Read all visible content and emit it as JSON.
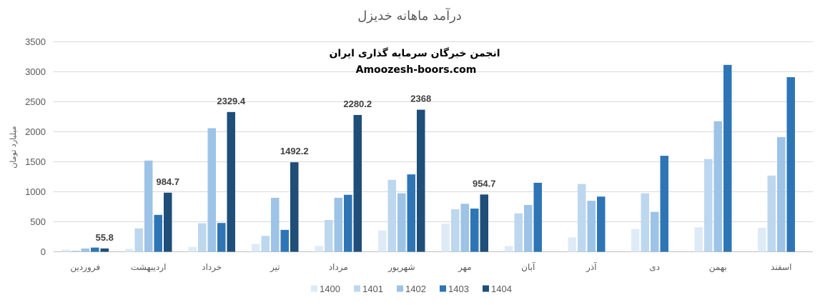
{
  "chart_data": {
    "type": "bar",
    "title": "درآمد ماهانه خدیزل",
    "ylabel": "میلیارد تومان",
    "ylim": [
      0,
      3500
    ],
    "yticks": [
      0,
      500,
      1000,
      1500,
      2000,
      2500,
      3000,
      3500
    ],
    "grid": true,
    "legend_position": "bottom",
    "categories": [
      "فروردین",
      "اردیبهشت",
      "خرداد",
      "تیر",
      "مرداد",
      "شهریور",
      "مهر",
      "آبان",
      "آذر",
      "دی",
      "بهمن",
      "اسفند"
    ],
    "series": [
      {
        "name": "1400",
        "color": "#deebf7",
        "values": [
          35,
          50,
          80,
          130,
          95,
          355,
          470,
          95,
          240,
          380,
          410,
          400
        ]
      },
      {
        "name": "1401",
        "color": "#bdd7ee",
        "values": [
          20,
          390,
          475,
          265,
          530,
          1200,
          710,
          640,
          1130,
          975,
          1545,
          1270
        ]
      },
      {
        "name": "1402",
        "color": "#9dc3e6",
        "values": [
          55,
          1520,
          2060,
          900,
          900,
          975,
          800,
          780,
          850,
          665,
          2175,
          1910
        ]
      },
      {
        "name": "1403",
        "color": "#2e75b6",
        "values": [
          70,
          615,
          480,
          365,
          950,
          1290,
          720,
          1150,
          920,
          1600,
          3115,
          2910
        ]
      },
      {
        "name": "1404",
        "color": "#1f4e79",
        "values": [
          55.8,
          984.7,
          2329.4,
          1492.2,
          2280.2,
          2368,
          954.7,
          null,
          null,
          null,
          null,
          null
        ]
      }
    ],
    "data_labels": [
      {
        "series": "1404",
        "category": "فروردین",
        "text": "55.8"
      },
      {
        "series": "1404",
        "category": "اردیبهشت",
        "text": "984.7"
      },
      {
        "series": "1404",
        "category": "خرداد",
        "text": "2329.4"
      },
      {
        "series": "1404",
        "category": "تیر",
        "text": "1492.2"
      },
      {
        "series": "1404",
        "category": "مرداد",
        "text": "2280.2"
      },
      {
        "series": "1404",
        "category": "شهریور",
        "text": "2368"
      },
      {
        "series": "1404",
        "category": "مهر",
        "text": "954.7"
      }
    ]
  },
  "watermark": {
    "line1": "انجمن خبرگان سرمایه گذاری ایران",
    "line2": "Amoozesh-boors.com"
  }
}
